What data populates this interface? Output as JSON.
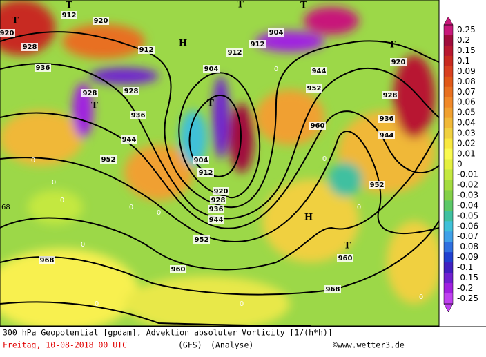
{
  "map": {
    "contour_labels": [
      "912",
      "912",
      "912",
      "912",
      "912",
      "920",
      "920",
      "920",
      "920",
      "928",
      "928",
      "928",
      "928",
      "928",
      "936",
      "936",
      "936",
      "936",
      "944",
      "944",
      "944",
      "944",
      "952",
      "952",
      "952",
      "952",
      "960",
      "960",
      "960",
      "968",
      "968",
      "904",
      "904",
      "904"
    ],
    "pressure_centers": [
      "T",
      "T",
      "T",
      "T",
      "T",
      "T",
      "T",
      "T",
      "H",
      "H"
    ],
    "zero_labels": [
      "0",
      "0",
      "0",
      "0",
      "0",
      "0",
      "0",
      "0",
      "0",
      "0",
      "0",
      "0"
    ],
    "edge_label": "68"
  },
  "colorbar": {
    "labels": [
      "0.25",
      "0.2",
      "0.15",
      "0.1",
      "0.09",
      "0.08",
      "0.07",
      "0.06",
      "0.05",
      "0.04",
      "0.03",
      "0.02",
      "0.01",
      "0",
      "-0.01",
      "-0.02",
      "-0.03",
      "-0.04",
      "-0.05",
      "-0.06",
      "-0.07",
      "-0.08",
      "-0.09",
      "-0.1",
      "-0.15",
      "-0.2",
      "-0.25"
    ],
    "colors": [
      "#c8187a",
      "#a00c3c",
      "#b81830",
      "#c82a20",
      "#d84020",
      "#e05818",
      "#e87020",
      "#f08828",
      "#f0a030",
      "#f0b838",
      "#f0d040",
      "#f8e840",
      "#fafa50",
      "#e4f040",
      "#c4e840",
      "#a4dc40",
      "#84d048",
      "#5cc868",
      "#40c0a0",
      "#40c0d8",
      "#40a0e8",
      "#3070e0",
      "#2040d0",
      "#4020c0",
      "#7020d0",
      "#a020e0",
      "#c040f0"
    ]
  },
  "footer": {
    "line1": "300 hPa Geopotential [gpdam], Advektion absoluter Vorticity [1/(h*h)]",
    "date": "Freitag, 10-08-2018  00 UTC",
    "model": "(GFS)",
    "run": "(Analyse)",
    "credit": "©www.wetter3.de"
  }
}
